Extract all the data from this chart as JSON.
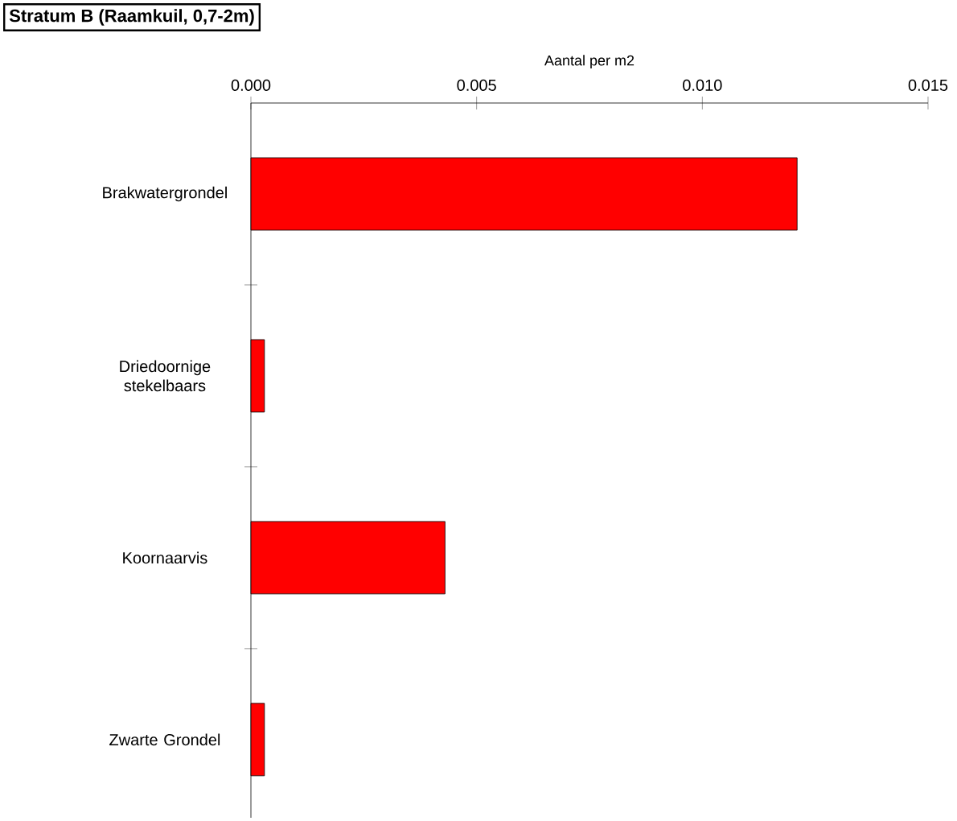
{
  "chart_data": {
    "type": "bar",
    "orientation": "horizontal",
    "title": "Stratum B (Raamkuil, 0,7-2m)",
    "xlabel": "Aantal per m2",
    "categories": [
      "Brakwatergrondel",
      "Driedoornige stekelbaars",
      "Koornaarvis",
      "Zwarte Grondel"
    ],
    "values": [
      0.0121,
      0.0003,
      0.0043,
      0.0003
    ],
    "color": "#ff0000",
    "xlim": [
      0,
      0.015
    ],
    "xticks": [
      {
        "value": 0,
        "label": "0.000"
      },
      {
        "value": 0.005,
        "label": "0.005"
      },
      {
        "value": 0.01,
        "label": "0.010"
      },
      {
        "value": 0.015,
        "label": "0.015"
      }
    ],
    "grid": false
  }
}
